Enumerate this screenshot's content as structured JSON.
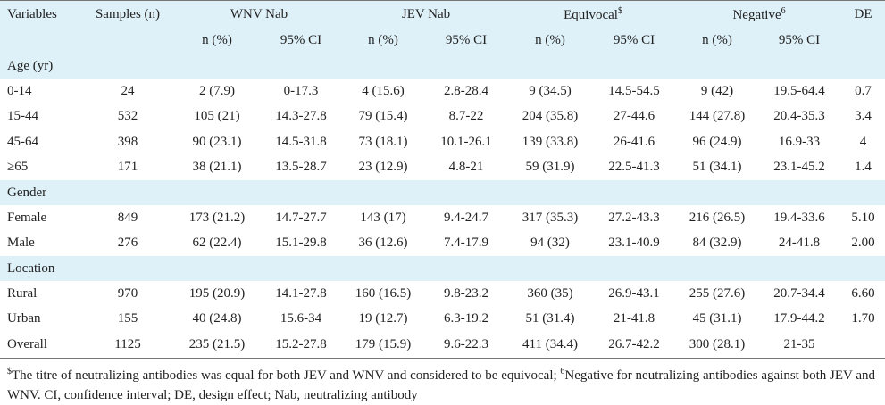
{
  "header": {
    "variables": "Variables",
    "samples": "Samples (n)",
    "groups": [
      "WNV Nab",
      "JEV Nab",
      "Equivocal",
      "Negative"
    ],
    "group_sups": [
      "",
      "",
      "$",
      "6"
    ],
    "de": "DE",
    "sub_n": "n (%)",
    "sub_ci": "95% CI"
  },
  "sections": [
    {
      "title": "Age (yr)",
      "rows": [
        [
          "0-14",
          "24",
          "2 (7.9)",
          "0-17.3",
          "4 (15.6)",
          "2.8-28.4",
          "9 (34.5)",
          "14.5-54.5",
          "9 (42)",
          "19.5-64.4",
          "0.7"
        ],
        [
          "15-44",
          "532",
          "105 (21)",
          "14.3-27.8",
          "79 (15.4)",
          "8.7-22",
          "204 (35.8)",
          "27-44.6",
          "144 (27.8)",
          "20.4-35.3",
          "3.4"
        ],
        [
          "45-64",
          "398",
          "90 (23.1)",
          "14.5-31.8",
          "73 (18.1)",
          "10.1-26.1",
          "139 (33.8)",
          "26-41.6",
          "96 (24.9)",
          "16.9-33",
          "4"
        ],
        [
          "≥65",
          "171",
          "38 (21.1)",
          "13.5-28.7",
          "23 (12.9)",
          "4.8-21",
          "59 (31.9)",
          "22.5-41.3",
          "51 (34.1)",
          "23.1-45.2",
          "1.4"
        ]
      ]
    },
    {
      "title": "Gender",
      "rows": [
        [
          "Female",
          "849",
          "173 (21.2)",
          "14.7-27.7",
          "143 (17)",
          "9.4-24.7",
          "317 (35.3)",
          "27.2-43.3",
          "216 (26.5)",
          "19.4-33.6",
          "5.10"
        ],
        [
          "Male",
          "276",
          "62 (22.4)",
          "15.1-29.8",
          "36 (12.6)",
          "7.4-17.9",
          "94 (32)",
          "23.1-40.9",
          "84 (32.9)",
          "24-41.8",
          "2.00"
        ]
      ]
    },
    {
      "title": "Location",
      "rows": [
        [
          "Rural",
          "970",
          "195 (20.9)",
          "14.1-27.8",
          "160 (16.5)",
          "9.8-23.2",
          "360 (35)",
          "26.9-43.1",
          "255 (27.6)",
          "20.7-34.4",
          "6.60"
        ],
        [
          "Urban",
          "155",
          "40 (24.8)",
          "15.6-34",
          "19 (12.7)",
          "6.3-19.2",
          "51 (31.4)",
          "21-41.8",
          "45 (31.1)",
          "17.9-44.2",
          "1.70"
        ],
        [
          "Overall",
          "1125",
          "235 (21.5)",
          "15.2-27.8",
          "179 (15.9)",
          "9.6-22.3",
          "411 (34.4)",
          "26.7-42.2",
          "300 (28.1)",
          "21-35",
          ""
        ]
      ]
    }
  ],
  "footnote": {
    "sup1": "$",
    "text1": "The titre of neutralizing antibodies was equal for both JEV and WNV and considered to be equivocal; ",
    "sup2": "6",
    "text2": "Negative for neutralizing antibodies against both JEV and WNV. CI, confidence interval; DE, design effect; Nab, neutralizing antibody"
  }
}
